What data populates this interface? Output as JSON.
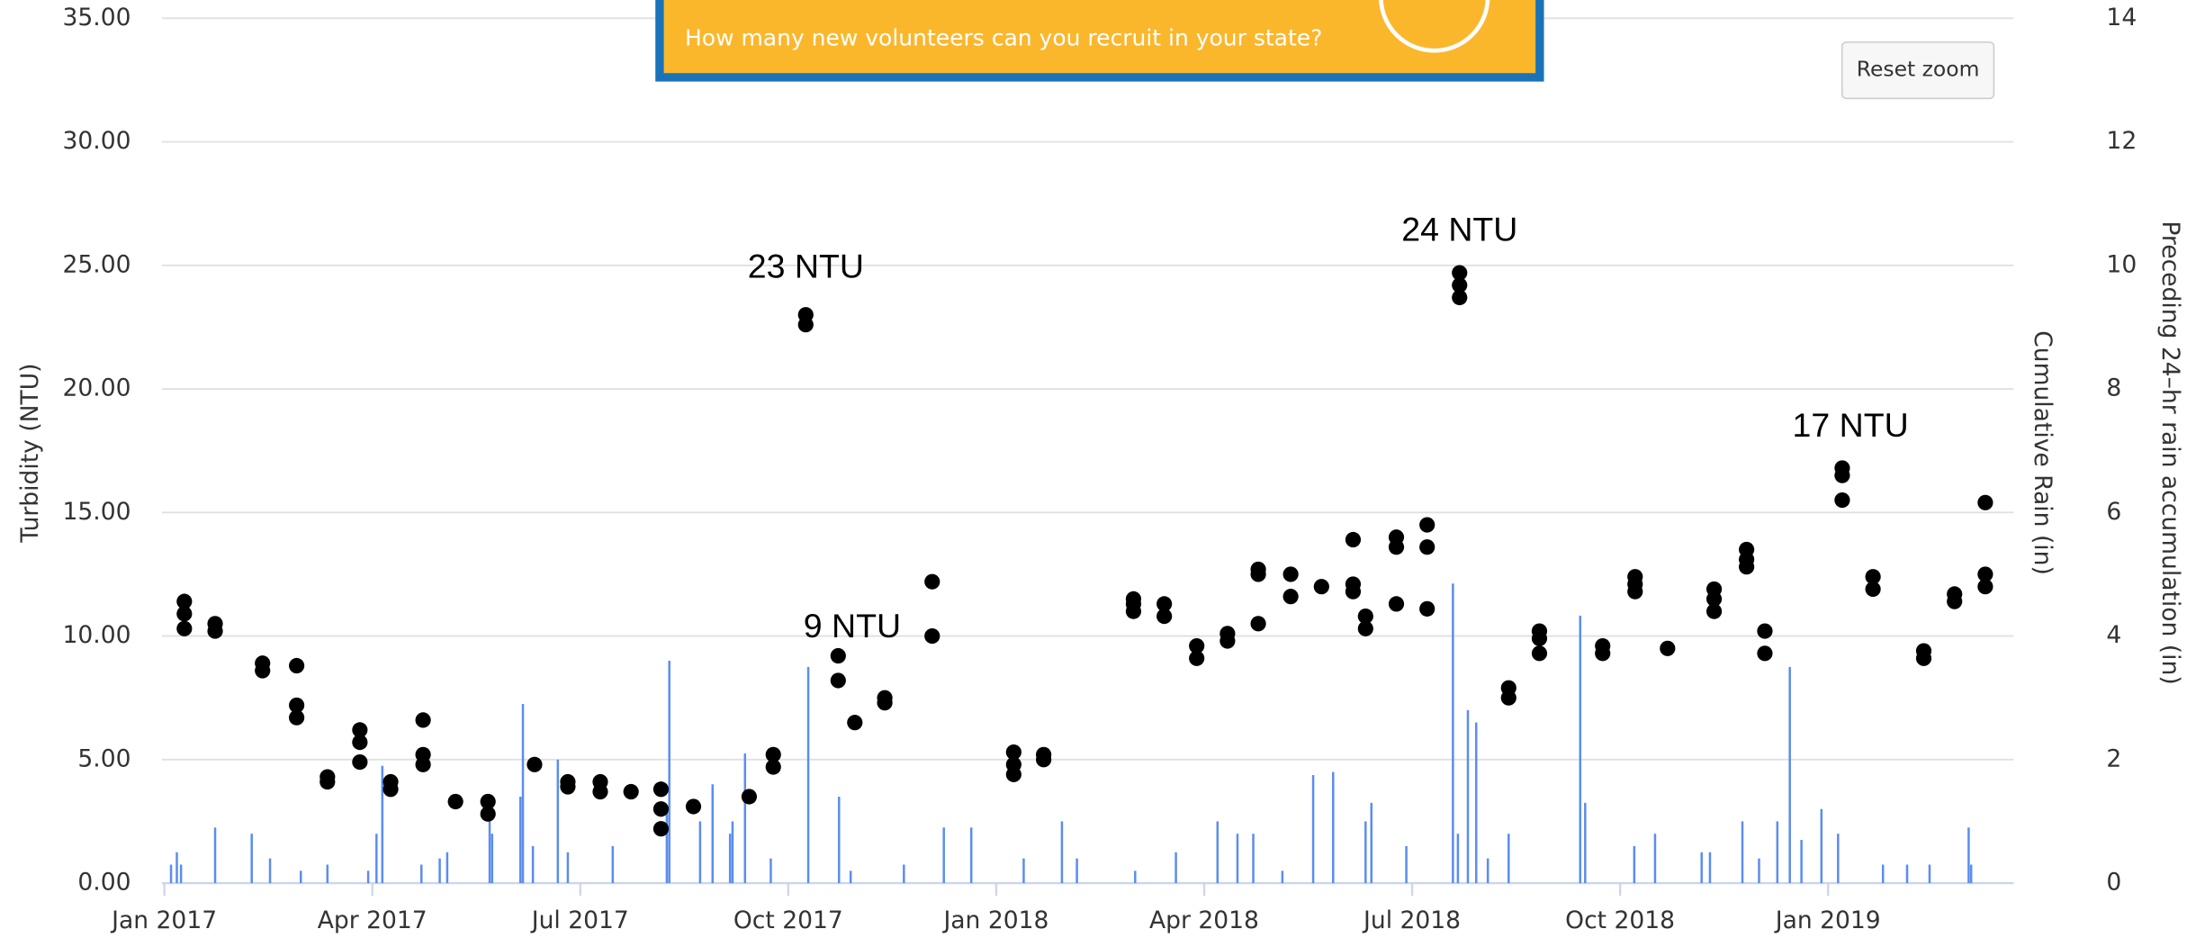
{
  "banner": {
    "text": "How many new volunteers can you recruit in your state?"
  },
  "reset_zoom": "Reset zoom",
  "chart_data": {
    "type": "scatter",
    "ylabel": "Turbidity (NTU)",
    "y2label": "Cumulative Rain (in)",
    "y3label": "Preceding 24–hr rain accumulation (in)",
    "xlim": [
      2016.997,
      2019.223
    ],
    "xticks": [
      {
        "value": 2017.0,
        "label": "Jan 2017"
      },
      {
        "value": 2017.25,
        "label": "Apr 2017"
      },
      {
        "value": 2017.5,
        "label": "Jul 2017"
      },
      {
        "value": 2017.75,
        "label": "Oct 2017"
      },
      {
        "value": 2018.0,
        "label": "Jan 2018"
      },
      {
        "value": 2018.25,
        "label": "Apr 2018"
      },
      {
        "value": 2018.5,
        "label": "Jul 2018"
      },
      {
        "value": 2018.75,
        "label": "Oct 2018"
      },
      {
        "value": 2019.0,
        "label": "Jan 2019"
      }
    ],
    "ylim": [
      0,
      35
    ],
    "yticks": [
      {
        "value": 0,
        "label": "0.00"
      },
      {
        "value": 5,
        "label": "5.00"
      },
      {
        "value": 10,
        "label": "10.00"
      },
      {
        "value": 15,
        "label": "15.00"
      },
      {
        "value": 20,
        "label": "20.00"
      },
      {
        "value": 25,
        "label": "25.00"
      },
      {
        "value": 30,
        "label": "30.00"
      },
      {
        "value": 35,
        "label": "35.00"
      }
    ],
    "y2lim": [
      0,
      14
    ],
    "y2ticks": [
      0,
      2,
      4,
      6,
      8,
      10,
      12,
      14
    ],
    "grid": true,
    "annotations": [
      {
        "text": "23 NTU"
      },
      {
        "text": "9 NTU"
      },
      {
        "text": "24 NTU"
      },
      {
        "text": "17 NTU"
      }
    ],
    "series": [
      {
        "type": "scatter",
        "color": "#000000",
        "x": [
          2017.024,
          2017.024,
          2017.024,
          2017.061,
          2017.061,
          2017.118,
          2017.118,
          2017.159,
          2017.159,
          2017.159,
          2017.196,
          2017.196,
          2017.235,
          2017.235,
          2017.235,
          2017.272,
          2017.272,
          2017.311,
          2017.311,
          2017.311,
          2017.35,
          2017.389,
          2017.389,
          2017.445,
          2017.485,
          2017.485,
          2017.524,
          2017.524,
          2017.561,
          2017.597,
          2017.597,
          2017.597,
          2017.636,
          2017.703,
          2017.732,
          2017.732,
          2017.771,
          2017.771,
          2017.81,
          2017.81,
          2017.83,
          2017.866,
          2017.866,
          2017.923,
          2017.923,
          2018.021,
          2018.021,
          2018.021,
          2018.057,
          2018.057,
          2018.165,
          2018.165,
          2018.165,
          2018.202,
          2018.202,
          2018.241,
          2018.241,
          2018.278,
          2018.278,
          2018.315,
          2018.315,
          2018.315,
          2018.354,
          2018.354,
          2018.391,
          2018.429,
          2018.429,
          2018.429,
          2018.444,
          2018.444,
          2018.481,
          2018.481,
          2018.481,
          2018.518,
          2018.518,
          2018.518,
          2018.557,
          2018.557,
          2018.557,
          2018.616,
          2018.616,
          2018.653,
          2018.653,
          2018.653,
          2018.729,
          2018.729,
          2018.768,
          2018.768,
          2018.768,
          2018.807,
          2018.863,
          2018.863,
          2018.863,
          2018.902,
          2018.902,
          2018.902,
          2018.924,
          2018.924,
          2019.017,
          2019.017,
          2019.017,
          2019.054,
          2019.054,
          2019.115,
          2019.115,
          2019.152,
          2019.152,
          2019.189,
          2019.189,
          2019.189
        ],
        "values": [
          11.4,
          10.9,
          10.3,
          10.5,
          10.2,
          8.9,
          8.6,
          8.8,
          7.2,
          6.7,
          4.3,
          4.1,
          6.2,
          5.7,
          4.9,
          4.1,
          3.8,
          6.6,
          5.2,
          4.8,
          3.3,
          3.3,
          2.8,
          4.8,
          4.1,
          3.9,
          4.1,
          3.7,
          3.7,
          3.8,
          3.0,
          2.2,
          3.1,
          3.5,
          5.2,
          4.7,
          23.0,
          22.6,
          9.2,
          8.2,
          6.5,
          7.5,
          7.3,
          12.2,
          10.0,
          5.3,
          4.8,
          4.4,
          5.2,
          5.0,
          11.5,
          11.3,
          11.0,
          11.3,
          10.8,
          9.6,
          9.1,
          10.1,
          9.8,
          12.7,
          12.5,
          10.5,
          12.5,
          11.6,
          12.0,
          13.9,
          12.1,
          11.8,
          10.8,
          10.3,
          14.0,
          13.6,
          11.3,
          14.5,
          13.6,
          11.1,
          24.7,
          24.2,
          23.7,
          7.9,
          7.5,
          10.2,
          9.9,
          9.3,
          9.6,
          9.3,
          12.4,
          12.1,
          11.8,
          9.5,
          11.9,
          11.5,
          11.0,
          13.5,
          13.1,
          12.8,
          10.2,
          9.3,
          16.8,
          16.5,
          15.5,
          12.4,
          11.9,
          9.4,
          9.1,
          11.7,
          11.4,
          15.4,
          12.5,
          12.0
        ]
      },
      {
        "type": "bar",
        "axis": "y2",
        "color": "#5b8def",
        "x": [
          2017.008,
          2017.015,
          2017.02,
          2017.061,
          2017.105,
          2017.127,
          2017.164,
          2017.196,
          2017.245,
          2017.255,
          2017.262,
          2017.309,
          2017.331,
          2017.34,
          2017.391,
          2017.394,
          2017.428,
          2017.431,
          2017.443,
          2017.473,
          2017.485,
          2017.539,
          2017.604,
          2017.607,
          2017.644,
          2017.659,
          2017.68,
          2017.683,
          2017.698,
          2017.729,
          2017.774,
          2017.811,
          2017.825,
          2017.889,
          2017.937,
          2017.97,
          2018.033,
          2018.079,
          2018.097,
          2018.167,
          2018.216,
          2018.266,
          2018.29,
          2018.309,
          2018.344,
          2018.381,
          2018.405,
          2018.444,
          2018.451,
          2018.493,
          2018.549,
          2018.555,
          2018.567,
          2018.577,
          2018.591,
          2018.616,
          2018.702,
          2018.708,
          2018.767,
          2018.792,
          2018.848,
          2018.858,
          2018.897,
          2018.917,
          2018.939,
          2018.954,
          2018.968,
          2018.992,
          2019.012,
          2019.066,
          2019.095,
          2019.122,
          2019.169,
          2019.172
        ],
        "values": [
          0.3,
          0.5,
          0.3,
          0.9,
          0.8,
          0.4,
          0.2,
          0.3,
          0.2,
          0.8,
          1.9,
          0.3,
          0.4,
          0.5,
          1.0,
          0.8,
          1.4,
          2.9,
          0.6,
          2.0,
          0.5,
          0.6,
          1.2,
          3.6,
          1.0,
          1.6,
          0.8,
          1.0,
          2.1,
          0.4,
          3.5,
          1.4,
          0.2,
          0.3,
          0.9,
          0.9,
          0.4,
          1.0,
          0.4,
          0.2,
          0.5,
          1.0,
          0.8,
          0.8,
          0.2,
          1.75,
          1.8,
          1.0,
          1.3,
          0.6,
          4.85,
          0.8,
          2.8,
          2.6,
          0.4,
          0.8,
          4.33,
          1.3,
          0.6,
          0.8,
          0.5,
          0.5,
          1.0,
          0.4,
          1.0,
          3.5,
          0.7,
          1.2,
          0.8,
          0.3,
          0.3,
          0.3,
          0.9,
          0.3
        ]
      }
    ]
  }
}
